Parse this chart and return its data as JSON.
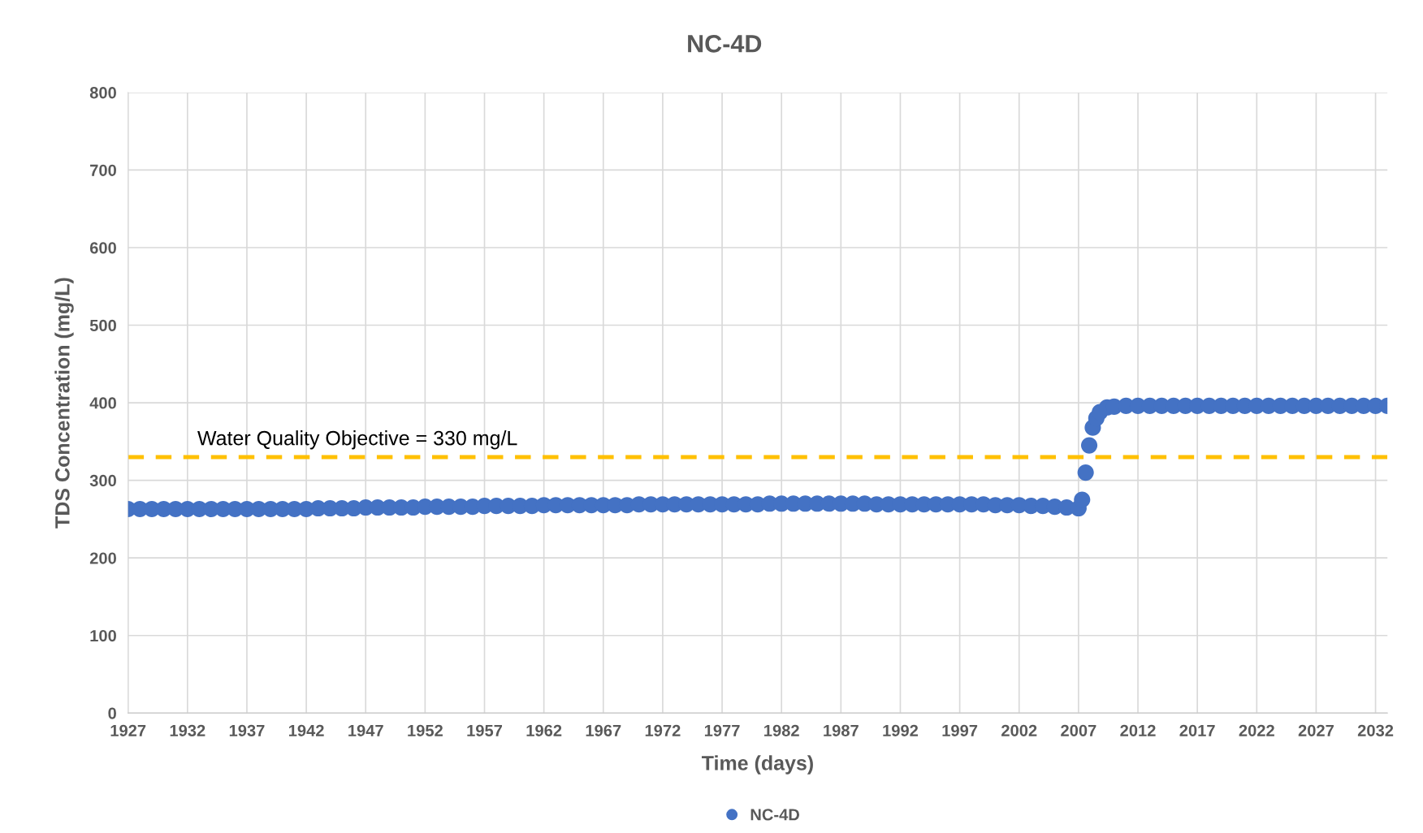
{
  "chart_data": {
    "type": "scatter",
    "title": "NC-4D",
    "xlabel": "Time (days)",
    "ylabel": "TDS Concentration (mg/L)",
    "xlim": [
      1927,
      2033
    ],
    "xticks": [
      1927,
      1932,
      1937,
      1942,
      1947,
      1952,
      1957,
      1962,
      1967,
      1972,
      1977,
      1982,
      1987,
      1992,
      1997,
      2002,
      2007,
      2012,
      2017,
      2022,
      2027,
      2032
    ],
    "ylim": [
      0,
      800
    ],
    "yticks": [
      0,
      100,
      200,
      300,
      400,
      500,
      600,
      700,
      800
    ],
    "grid": true,
    "legend": "bottom",
    "marker": "circle",
    "ref_lines": [
      {
        "axis": "y",
        "value": 330,
        "label": "Water Quality Objective = 330 mg/L",
        "color": "#ffc000",
        "line_style": "dashed"
      }
    ],
    "series": [
      {
        "name": "NC-4D",
        "color": "#4472c4",
        "x": [
          1927,
          1928,
          1929,
          1930,
          1931,
          1932,
          1933,
          1934,
          1935,
          1936,
          1937,
          1938,
          1939,
          1940,
          1941,
          1942,
          1943,
          1944,
          1945,
          1946,
          1947,
          1948,
          1949,
          1950,
          1951,
          1952,
          1953,
          1954,
          1955,
          1956,
          1957,
          1958,
          1959,
          1960,
          1961,
          1962,
          1963,
          1964,
          1965,
          1966,
          1967,
          1968,
          1969,
          1970,
          1971,
          1972,
          1973,
          1974,
          1975,
          1976,
          1977,
          1978,
          1979,
          1980,
          1981,
          1982,
          1983,
          1984,
          1985,
          1986,
          1987,
          1988,
          1989,
          1990,
          1991,
          1992,
          1993,
          1994,
          1995,
          1996,
          1997,
          1998,
          1999,
          2000,
          2001,
          2002,
          2003,
          2004,
          2005,
          2006,
          2007,
          2007.3,
          2007.6,
          2007.9,
          2008.2,
          2008.5,
          2008.8,
          2009.4,
          2010,
          2011,
          2012,
          2013,
          2014,
          2015,
          2016,
          2017,
          2018,
          2019,
          2020,
          2021,
          2022,
          2023,
          2024,
          2025,
          2026,
          2027,
          2028,
          2029,
          2030,
          2031,
          2032,
          2033
        ],
        "values": [
          263,
          263,
          263,
          263,
          263,
          263,
          263,
          263,
          263,
          263,
          263,
          263,
          263,
          263,
          263,
          263,
          264,
          264,
          264,
          264,
          265,
          265,
          265,
          265,
          265,
          266,
          266,
          266,
          266,
          266,
          267,
          267,
          267,
          267,
          267,
          268,
          268,
          268,
          268,
          268,
          268,
          268,
          268,
          269,
          269,
          269,
          269,
          269,
          269,
          269,
          269,
          269,
          269,
          269,
          270,
          270,
          270,
          270,
          270,
          270,
          270,
          270,
          270,
          269,
          269,
          269,
          269,
          269,
          269,
          269,
          269,
          269,
          269,
          268,
          268,
          268,
          267,
          267,
          266,
          265,
          264,
          275,
          310,
          345,
          368,
          380,
          388,
          394,
          395,
          396,
          396,
          396,
          396,
          396,
          396,
          396,
          396,
          396,
          396,
          396,
          396,
          396,
          396,
          396,
          396,
          396,
          396,
          396,
          396,
          396,
          396,
          396
        ]
      }
    ]
  }
}
